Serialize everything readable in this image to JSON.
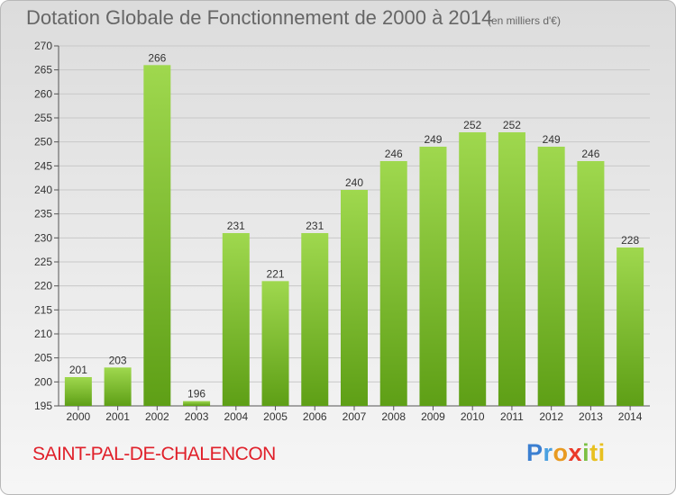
{
  "title": "Dotation Globale de Fonctionnement de 2000 à 2014",
  "unit": "(en milliers d'€)",
  "place": "SAINT-PAL-DE-CHALENCON",
  "logo": {
    "p1": "P",
    "p2": "r",
    "p3": "o",
    "p4": "x",
    "p5": "i",
    "p6": "ti"
  },
  "colors": {
    "bar_light": "#9fd84e",
    "bar_dark": "#5e9f16",
    "place": "#e0202a"
  },
  "chart_data": {
    "type": "bar",
    "categories": [
      "2000",
      "2001",
      "2002",
      "2003",
      "2004",
      "2005",
      "2006",
      "2007",
      "2008",
      "2009",
      "2010",
      "2011",
      "2012",
      "2013",
      "2014"
    ],
    "values": [
      201,
      203,
      266,
      196,
      231,
      221,
      231,
      240,
      246,
      249,
      252,
      252,
      249,
      246,
      228
    ],
    "ylim": [
      195,
      270
    ],
    "yticks": [
      195,
      200,
      205,
      210,
      215,
      220,
      225,
      230,
      235,
      240,
      245,
      250,
      255,
      260,
      265,
      270
    ],
    "grid": true
  }
}
